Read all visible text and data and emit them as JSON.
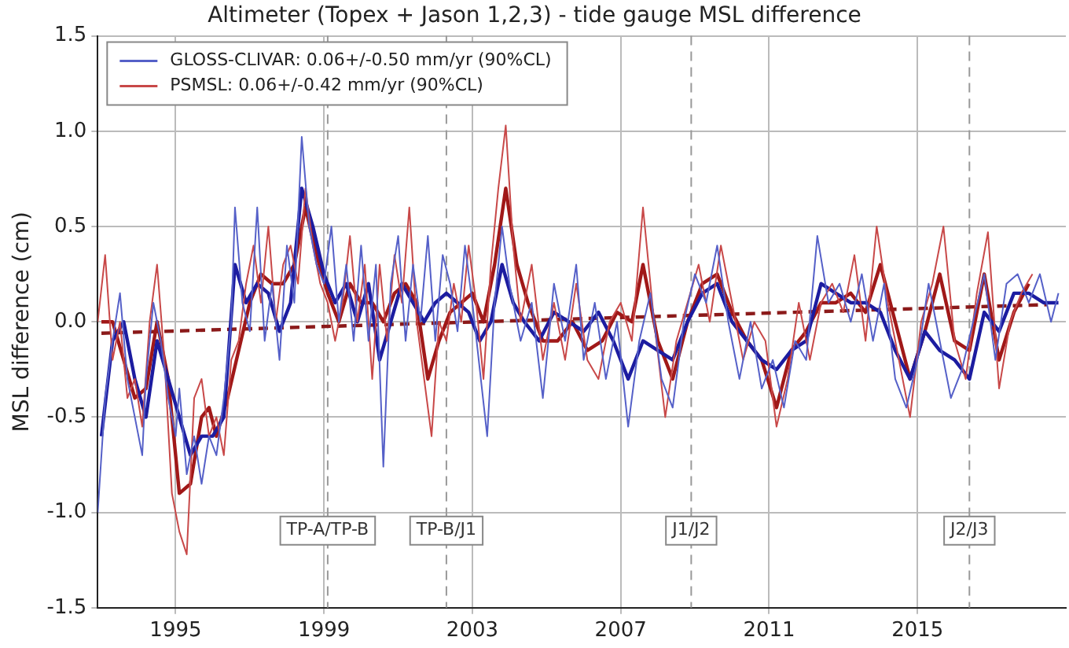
{
  "chart_data": {
    "type": "line",
    "title": "Altimeter (Topex + Jason 1,2,3) - tide gauge MSL difference",
    "ylabel": "MSL difference (cm)",
    "xlim": [
      1992.9,
      2019
    ],
    "xticks": [
      1995,
      1999,
      2003,
      2007,
      2011,
      2015
    ],
    "ylim": [
      -1.5,
      1.5
    ],
    "yticks": [
      -1.5,
      {
        "value": -1,
        "label": "-1.0"
      },
      -0.5,
      {
        "value": 0,
        "label": "0.0"
      },
      0.5,
      {
        "value": 1,
        "label": "1.0"
      },
      1.5
    ],
    "grid": true,
    "legend": "top left",
    "marker": "none",
    "ref_lines": [
      {
        "axis": "x",
        "value": 1999.1,
        "label": "TP-A/TP-B",
        "color": "#999999",
        "line_style": "dashed"
      },
      {
        "axis": "x",
        "value": 2002.3,
        "label": "TP-B/J1",
        "color": "#999999",
        "line_style": "dashed"
      },
      {
        "axis": "x",
        "value": 2008.9,
        "label": "J1/J2",
        "color": "#999999",
        "line_style": "dashed"
      },
      {
        "axis": "x",
        "value": 2016.4,
        "label": "J2/J3",
        "color": "#999999",
        "line_style": "dashed"
      }
    ],
    "series": [
      {
        "name": "GLOSS-CLIVAR: 0.06+/-0.50 mm/yr (90%CL)",
        "color": "#5560c8",
        "x": [
          1992.9,
          1993.1,
          1993.3,
          1993.5,
          1993.7,
          1993.9,
          1994.1,
          1994.2,
          1994.4,
          1994.6,
          1994.8,
          1995.0,
          1995.1,
          1995.3,
          1995.5,
          1995.7,
          1995.9,
          1996.1,
          1996.3,
          1996.5,
          1996.6,
          1996.8,
          1997.0,
          1997.2,
          1997.4,
          1997.6,
          1997.8,
          1998.0,
          1998.2,
          1998.4,
          1998.6,
          1998.8,
          1999.0,
          1999.2,
          1999.4,
          1999.6,
          1999.8,
          2000.0,
          2000.2,
          2000.4,
          2000.6,
          2000.8,
          2001.0,
          2001.2,
          2001.4,
          2001.6,
          2001.8,
          2002.0,
          2002.2,
          2002.4,
          2002.6,
          2002.8,
          2003.0,
          2003.4,
          2003.6,
          2003.8,
          2004.0,
          2004.3,
          2004.6,
          2004.9,
          2005.2,
          2005.5,
          2005.8,
          2006.0,
          2006.3,
          2006.6,
          2006.9,
          2007.2,
          2007.5,
          2007.8,
          2008.1,
          2008.4,
          2008.7,
          2009.0,
          2009.3,
          2009.6,
          2009.9,
          2010.2,
          2010.5,
          2010.8,
          2011.1,
          2011.4,
          2011.7,
          2012.0,
          2012.3,
          2012.6,
          2012.9,
          2013.2,
          2013.5,
          2013.8,
          2014.1,
          2014.4,
          2014.7,
          2015.0,
          2015.3,
          2015.6,
          2015.9,
          2016.2,
          2016.5,
          2016.8,
          2017.1,
          2017.4,
          2017.7,
          2018.0,
          2018.3,
          2018.6,
          2018.8
        ],
        "values": [
          -1.0,
          -0.4,
          -0.1,
          0.15,
          -0.3,
          -0.5,
          -0.7,
          -0.3,
          0.1,
          -0.1,
          -0.4,
          -0.6,
          -0.35,
          -0.8,
          -0.6,
          -0.85,
          -0.6,
          -0.7,
          -0.4,
          0.0,
          0.6,
          0.1,
          -0.05,
          0.6,
          -0.1,
          0.2,
          -0.2,
          0.4,
          0.1,
          0.97,
          0.5,
          0.3,
          0.2,
          0.5,
          0.0,
          0.3,
          -0.1,
          0.4,
          -0.1,
          0.3,
          -0.76,
          0.2,
          0.45,
          -0.1,
          0.3,
          0.0,
          0.45,
          -0.1,
          0.35,
          0.2,
          -0.05,
          0.4,
          0.1,
          -0.6,
          0.1,
          0.5,
          0.2,
          -0.1,
          0.1,
          -0.4,
          0.2,
          -0.1,
          0.3,
          -0.2,
          0.1,
          -0.3,
          0.0,
          -0.55,
          -0.1,
          0.15,
          -0.3,
          -0.45,
          0.0,
          0.25,
          0.1,
          0.4,
          0.0,
          -0.3,
          0.0,
          -0.35,
          -0.2,
          -0.45,
          -0.1,
          -0.2,
          0.45,
          0.1,
          0.2,
          0.0,
          0.25,
          -0.1,
          0.2,
          -0.3,
          -0.45,
          -0.2,
          0.2,
          -0.1,
          -0.4,
          -0.25,
          0.0,
          0.25,
          -0.2,
          0.2,
          0.25,
          0.1,
          0.25,
          0.0,
          0.15
        ]
      },
      {
        "name": "PSMSL: 0.06+/-0.42 mm/yr (90%CL)",
        "color": "#c84848",
        "x": [
          1992.9,
          1993.1,
          1993.3,
          1993.5,
          1993.7,
          1993.9,
          1994.1,
          1994.3,
          1994.5,
          1994.7,
          1994.9,
          1995.1,
          1995.3,
          1995.5,
          1995.7,
          1995.9,
          1996.1,
          1996.3,
          1996.5,
          1996.7,
          1996.9,
          1997.1,
          1997.3,
          1997.5,
          1997.7,
          1997.9,
          1998.1,
          1998.3,
          1998.5,
          1998.7,
          1998.9,
          1999.1,
          1999.3,
          1999.5,
          1999.7,
          1999.9,
          2000.1,
          2000.3,
          2000.5,
          2000.7,
          2000.9,
          2001.1,
          2001.3,
          2001.5,
          2001.7,
          2001.9,
          2002.1,
          2002.3,
          2002.5,
          2002.7,
          2002.9,
          2003.1,
          2003.3,
          2003.5,
          2003.7,
          2003.9,
          2004.1,
          2004.3,
          2004.6,
          2004.9,
          2005.2,
          2005.5,
          2005.8,
          2006.1,
          2006.4,
          2006.7,
          2007.0,
          2007.3,
          2007.6,
          2007.9,
          2008.2,
          2008.5,
          2008.8,
          2009.1,
          2009.4,
          2009.7,
          2010.0,
          2010.3,
          2010.6,
          2010.9,
          2011.2,
          2011.5,
          2011.8,
          2012.1,
          2012.4,
          2012.7,
          2013.0,
          2013.3,
          2013.6,
          2013.9,
          2014.2,
          2014.5,
          2014.8,
          2015.1,
          2015.4,
          2015.7,
          2016.0,
          2016.3,
          2016.6,
          2016.9,
          2017.2,
          2017.5,
          2017.8,
          2018.1
        ],
        "values": [
          0.0,
          0.35,
          -0.2,
          0.0,
          -0.4,
          -0.3,
          -0.55,
          0.0,
          0.3,
          -0.2,
          -0.9,
          -1.1,
          -1.22,
          -0.4,
          -0.3,
          -0.6,
          -0.5,
          -0.7,
          -0.2,
          -0.1,
          0.2,
          0.4,
          0.1,
          0.5,
          0.0,
          0.3,
          0.4,
          0.2,
          0.7,
          0.4,
          0.2,
          0.1,
          -0.1,
          0.1,
          0.45,
          0.0,
          0.3,
          -0.3,
          0.3,
          -0.1,
          0.35,
          0.1,
          0.6,
          0.0,
          -0.3,
          -0.6,
          0.0,
          -0.1,
          0.2,
          0.0,
          0.4,
          0.1,
          -0.3,
          0.3,
          0.7,
          1.03,
          0.4,
          0.0,
          0.3,
          -0.2,
          0.1,
          -0.2,
          0.2,
          -0.2,
          -0.3,
          0.0,
          0.1,
          -0.1,
          0.6,
          0.0,
          -0.5,
          -0.1,
          0.1,
          0.3,
          0.0,
          0.4,
          0.1,
          -0.2,
          0.0,
          -0.1,
          -0.55,
          -0.3,
          0.1,
          -0.2,
          0.1,
          0.2,
          0.05,
          0.35,
          -0.1,
          0.5,
          0.1,
          -0.2,
          -0.5,
          0.0,
          0.2,
          0.5,
          -0.1,
          -0.3,
          0.15,
          0.47,
          -0.35,
          0.0,
          0.15,
          0.25
        ]
      },
      {
        "color": "#1c1ca0",
        "x": [
          1993.0,
          1993.3,
          1993.6,
          1993.9,
          1994.2,
          1994.5,
          1994.8,
          1995.1,
          1995.4,
          1995.7,
          1996.0,
          1996.3,
          1996.6,
          1996.9,
          1997.2,
          1997.5,
          1997.8,
          1998.1,
          1998.4,
          1998.7,
          1999.0,
          1999.3,
          1999.6,
          1999.9,
          2000.2,
          2000.5,
          2000.8,
          2001.1,
          2001.4,
          2001.7,
          2002.0,
          2002.3,
          2002.6,
          2002.9,
          2003.2,
          2003.5,
          2003.8,
          2004.1,
          2004.4,
          2004.8,
          2005.2,
          2005.6,
          2006.0,
          2006.4,
          2006.8,
          2007.2,
          2007.6,
          2008.0,
          2008.4,
          2008.8,
          2009.2,
          2009.6,
          2010.0,
          2010.4,
          2010.8,
          2011.2,
          2011.6,
          2012.0,
          2012.4,
          2012.8,
          2013.2,
          2013.6,
          2014.0,
          2014.4,
          2014.8,
          2015.2,
          2015.6,
          2016.0,
          2016.4,
          2016.8,
          2017.2,
          2017.6,
          2018.0,
          2018.4,
          2018.8
        ],
        "values": [
          -0.6,
          -0.1,
          0.0,
          -0.3,
          -0.5,
          -0.1,
          -0.3,
          -0.5,
          -0.7,
          -0.6,
          -0.6,
          -0.5,
          0.3,
          0.1,
          0.2,
          0.15,
          -0.05,
          0.1,
          0.7,
          0.5,
          0.25,
          0.1,
          0.2,
          0.0,
          0.2,
          -0.2,
          0.0,
          0.2,
          0.1,
          0.0,
          0.1,
          0.15,
          0.1,
          0.05,
          -0.1,
          0.0,
          0.3,
          0.1,
          0.0,
          -0.1,
          0.05,
          0.0,
          -0.05,
          0.05,
          -0.1,
          -0.3,
          -0.1,
          -0.15,
          -0.2,
          0.0,
          0.15,
          0.2,
          0.0,
          -0.1,
          -0.2,
          -0.25,
          -0.15,
          -0.1,
          0.2,
          0.15,
          0.1,
          0.1,
          0.05,
          -0.15,
          -0.3,
          -0.05,
          -0.15,
          -0.2,
          -0.3,
          0.05,
          -0.05,
          0.15,
          0.15,
          0.1,
          0.1
        ]
      },
      {
        "color": "#a01818",
        "x": [
          1993.0,
          1993.3,
          1993.6,
          1993.9,
          1994.2,
          1994.5,
          1994.8,
          1995.1,
          1995.4,
          1995.7,
          1995.9,
          1996.1,
          1996.4,
          1996.7,
          1997.0,
          1997.3,
          1997.6,
          1997.9,
          1998.2,
          1998.5,
          1998.8,
          1999.1,
          1999.4,
          1999.7,
          2000.0,
          2000.3,
          2000.6,
          2000.9,
          2001.2,
          2001.5,
          2001.8,
          2002.1,
          2002.4,
          2002.7,
          2003.0,
          2003.3,
          2003.6,
          2003.9,
          2004.2,
          2004.5,
          2004.9,
          2005.3,
          2005.7,
          2006.1,
          2006.5,
          2006.9,
          2007.3,
          2007.6,
          2008.0,
          2008.4,
          2008.8,
          2009.2,
          2009.6,
          2010.0,
          2010.4,
          2010.8,
          2011.2,
          2011.6,
          2012.0,
          2012.4,
          2012.8,
          2013.2,
          2013.6,
          2014.0,
          2014.4,
          2014.8,
          2015.2,
          2015.6,
          2016.0,
          2016.4,
          2016.8,
          2017.2,
          2017.6,
          2018.0
        ],
        "values": [
          0.0,
          0.0,
          -0.2,
          -0.4,
          -0.35,
          0.0,
          -0.3,
          -0.9,
          -0.85,
          -0.5,
          -0.45,
          -0.6,
          -0.4,
          -0.15,
          0.1,
          0.25,
          0.2,
          0.2,
          0.3,
          0.6,
          0.35,
          0.15,
          0.0,
          0.2,
          0.1,
          0.1,
          0.0,
          0.15,
          0.2,
          0.1,
          -0.3,
          -0.1,
          0.05,
          0.1,
          0.15,
          0.0,
          0.3,
          0.7,
          0.3,
          0.1,
          -0.1,
          -0.1,
          0.0,
          -0.15,
          -0.1,
          0.05,
          0.0,
          0.3,
          -0.1,
          -0.3,
          0.0,
          0.2,
          0.25,
          0.05,
          -0.1,
          -0.2,
          -0.45,
          -0.15,
          -0.05,
          0.1,
          0.1,
          0.15,
          0.05,
          0.3,
          0.0,
          -0.3,
          -0.05,
          0.25,
          -0.1,
          -0.15,
          0.25,
          -0.2,
          0.05,
          0.2
        ]
      },
      {
        "color": "#8b1a1a",
        "line_style": "dashed",
        "x": [
          1993.0,
          2018.5
        ],
        "values": [
          -0.06,
          0.09
        ]
      }
    ]
  }
}
